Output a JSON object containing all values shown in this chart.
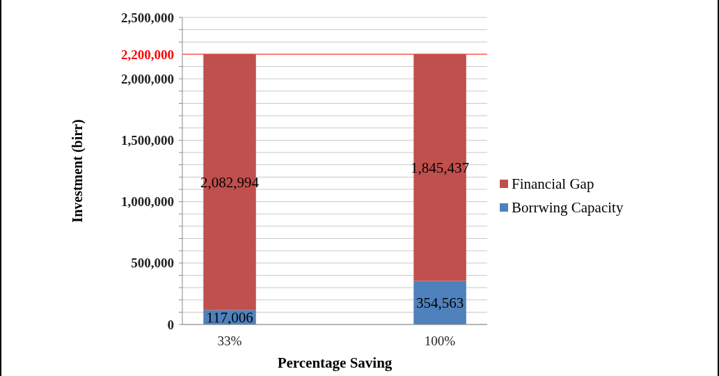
{
  "chart_data": {
    "type": "bar",
    "stacked": true,
    "xlabel": "Percentage Saving",
    "ylabel": "Investment (birr)",
    "categories": [
      "33%",
      "100%"
    ],
    "series": [
      {
        "name": "Borrwing Capacity",
        "color": "#4f81bd",
        "values": [
          117006,
          354563
        ],
        "value_labels": [
          "117,006",
          "354,563"
        ]
      },
      {
        "name": "Financial Gap",
        "color": "#c0504d",
        "values": [
          2082994,
          1845437
        ],
        "value_labels": [
          "2,082,994",
          "1,845,437"
        ]
      }
    ],
    "ylim": [
      0,
      2500000
    ],
    "yticks": [
      0,
      {
        "value": 100000,
        "label": null
      },
      {
        "value": 200000,
        "label": null
      },
      {
        "value": 300000,
        "label": null
      },
      {
        "value": 400000,
        "label": null
      },
      {
        "value": 500000,
        "label": "500,000"
      },
      {
        "value": 600000,
        "label": null
      },
      {
        "value": 700000,
        "label": null
      },
      {
        "value": 800000,
        "label": null
      },
      {
        "value": 900000,
        "label": null
      },
      {
        "value": 1000000,
        "label": "1,000,000"
      },
      {
        "value": 1100000,
        "label": null
      },
      {
        "value": 1200000,
        "label": null
      },
      {
        "value": 1300000,
        "label": null
      },
      {
        "value": 1400000,
        "label": null
      },
      {
        "value": 1500000,
        "label": "1,500,000"
      },
      {
        "value": 1600000,
        "label": null
      },
      {
        "value": 1700000,
        "label": null
      },
      {
        "value": 1800000,
        "label": null
      },
      {
        "value": 1900000,
        "label": null
      },
      {
        "value": 2000000,
        "label": "2,000,000"
      },
      {
        "value": 2100000,
        "label": null
      },
      {
        "value": 2300000,
        "label": null
      },
      {
        "value": 2400000,
        "label": null
      },
      {
        "value": 2500000,
        "label": "2,500,000"
      }
    ],
    "ref_lines": [
      {
        "axis": "y",
        "value": 2200000,
        "label": "2,200,000",
        "color": "#ff0000"
      }
    ],
    "grid": "y",
    "legend": "right"
  }
}
